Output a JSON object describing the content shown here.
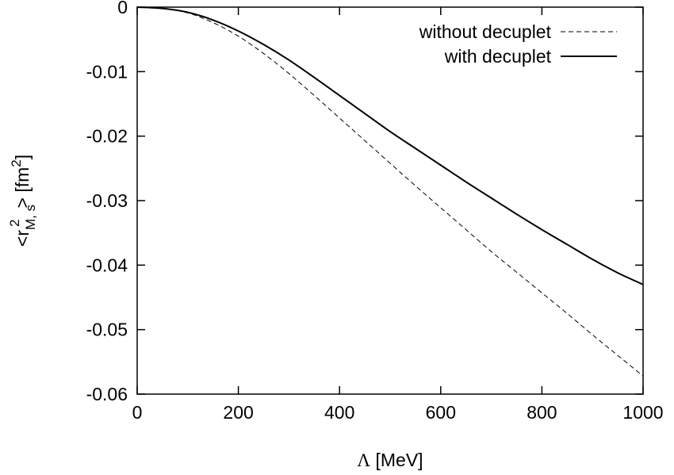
{
  "chart_data": {
    "type": "line",
    "title": "",
    "xlabel": {
      "symbol": "Λ",
      "unit": " [MeV]"
    },
    "ylabel": {
      "open": "<r",
      "subscript": "M, s",
      "superscript": "2",
      "close": "> [fm",
      "unit_superscript": "2",
      "unit_close": "]"
    },
    "xlim": [
      0,
      1000
    ],
    "ylim": [
      -0.06,
      0
    ],
    "xticks": [
      0,
      200,
      400,
      600,
      800,
      1000
    ],
    "xtick_labels": [
      "0",
      "200",
      "400",
      "600",
      "800",
      "1000"
    ],
    "yticks": [
      0,
      -0.01,
      -0.02,
      -0.03,
      -0.04,
      -0.05,
      -0.06
    ],
    "ytick_labels": [
      "0",
      "-0.01",
      "-0.02",
      "-0.03",
      "-0.04",
      "-0.05",
      "-0.06"
    ],
    "grid": false,
    "legend_position": "top-right",
    "series": [
      {
        "name": "without decuplet",
        "style": "dashed",
        "color": "#000000",
        "x": [
          0,
          50,
          100,
          150,
          200,
          250,
          300,
          350,
          400,
          450,
          500,
          550,
          600,
          650,
          700,
          750,
          800,
          850,
          900,
          950,
          1000
        ],
        "y": [
          0,
          -0.0002,
          -0.0009,
          -0.0024,
          -0.0045,
          -0.0072,
          -0.0103,
          -0.0137,
          -0.0172,
          -0.0207,
          -0.0242,
          -0.0277,
          -0.0311,
          -0.0345,
          -0.0379,
          -0.0411,
          -0.0443,
          -0.0475,
          -0.0508,
          -0.054,
          -0.0572
        ]
      },
      {
        "name": "with decuplet",
        "style": "solid",
        "color": "#000000",
        "x": [
          0,
          50,
          100,
          150,
          200,
          250,
          300,
          350,
          400,
          450,
          500,
          550,
          600,
          650,
          700,
          750,
          800,
          850,
          900,
          950,
          1000
        ],
        "y": [
          0,
          -0.0002,
          -0.0008,
          -0.002,
          -0.0037,
          -0.0058,
          -0.0082,
          -0.0109,
          -0.0137,
          -0.0165,
          -0.0193,
          -0.0219,
          -0.0245,
          -0.0271,
          -0.0296,
          -0.0321,
          -0.0345,
          -0.0368,
          -0.0391,
          -0.0412,
          -0.043
        ]
      }
    ]
  }
}
